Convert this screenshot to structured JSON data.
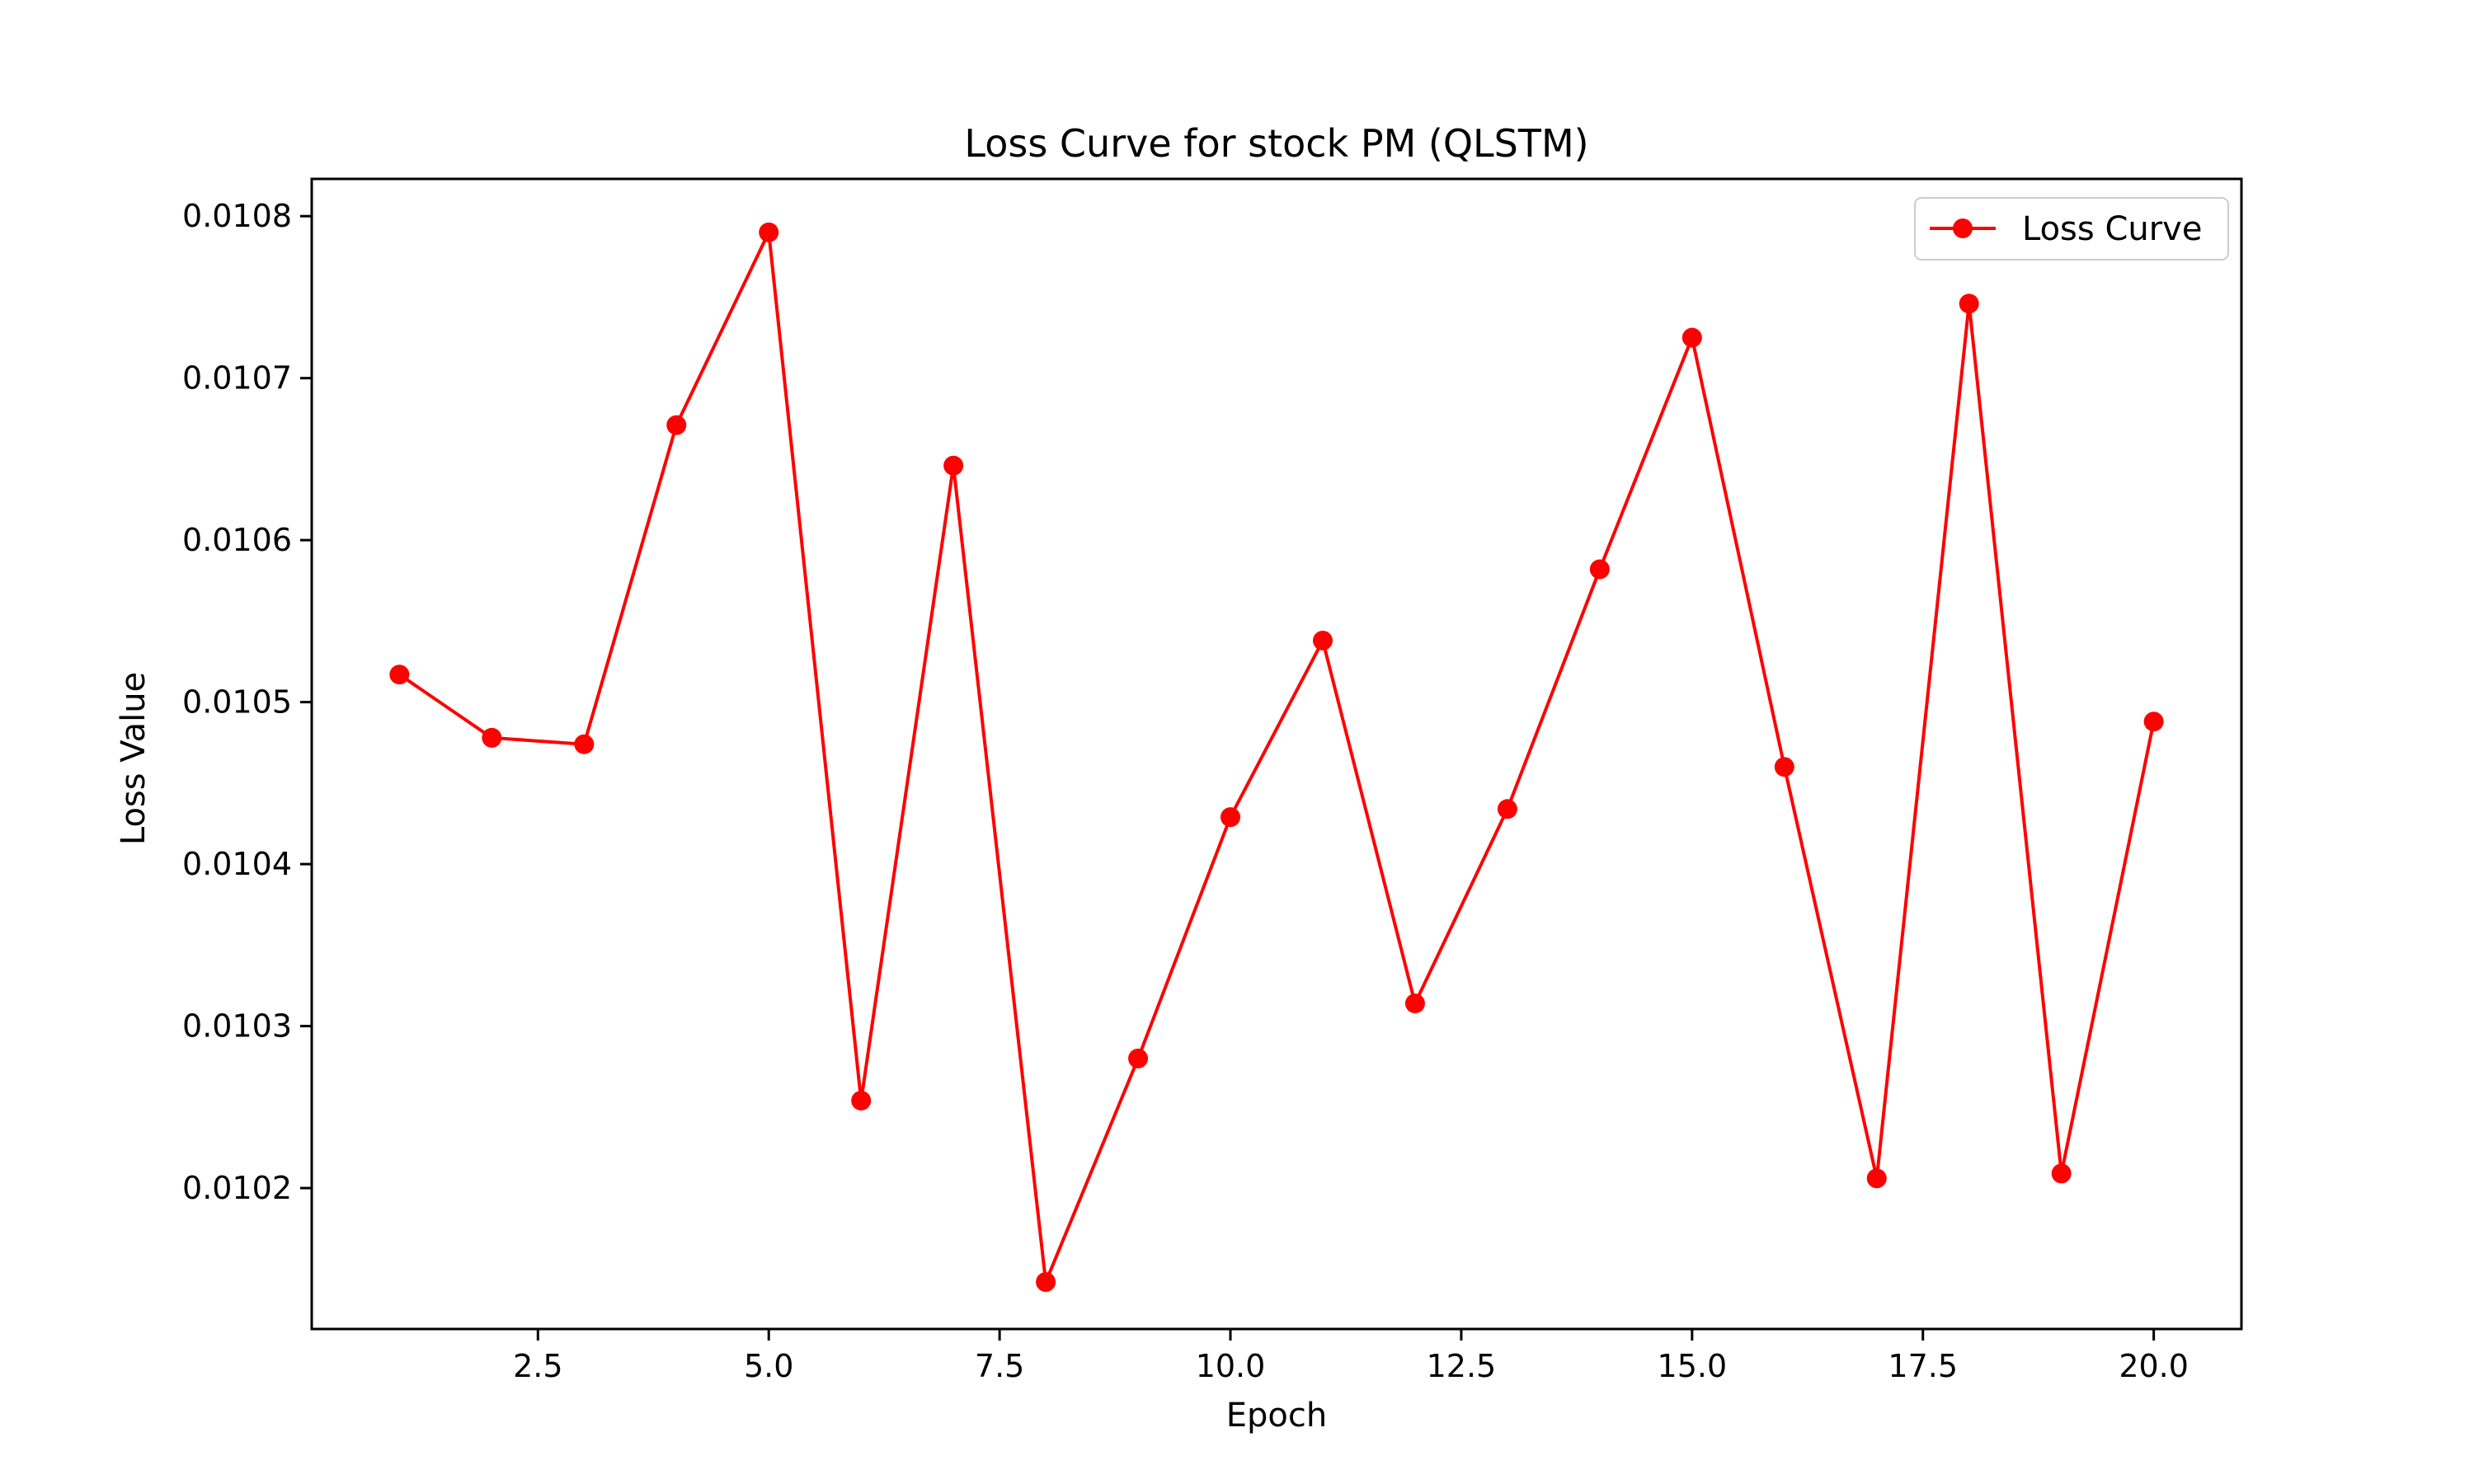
{
  "chart_data": {
    "type": "line",
    "title": "Loss Curve for stock PM (QLSTM)",
    "xlabel": "Epoch",
    "ylabel": "Loss Value",
    "xlim": [
      0.05,
      20.95
    ],
    "ylim": [
      0.010113,
      0.010823
    ],
    "xticks": [
      2.5,
      5.0,
      7.5,
      10.0,
      12.5,
      15.0,
      17.5,
      20.0
    ],
    "xtick_labels": [
      "2.5",
      "5.0",
      "7.5",
      "10.0",
      "12.5",
      "15.0",
      "17.5",
      "20.0"
    ],
    "yticks": [
      0.0102,
      0.0103,
      0.0104,
      0.0105,
      0.0106,
      0.0107,
      0.0108
    ],
    "ytick_labels": [
      "0.0102",
      "0.0103",
      "0.0104",
      "0.0105",
      "0.0106",
      "0.0107",
      "0.0108"
    ],
    "grid": false,
    "legend_position": "top-right",
    "series": [
      {
        "name": "Loss Curve",
        "color": "#ff0000",
        "marker": "circle",
        "x": [
          1,
          2,
          3,
          4,
          5,
          6,
          7,
          8,
          9,
          10,
          11,
          12,
          13,
          14,
          15,
          16,
          17,
          18,
          19,
          20
        ],
        "y": [
          0.010517,
          0.010478,
          0.010474,
          0.010671,
          0.01079,
          0.010254,
          0.010646,
          0.010142,
          0.01028,
          0.010429,
          0.010538,
          0.010314,
          0.010434,
          0.010582,
          0.010725,
          0.01046,
          0.010206,
          0.010746,
          0.010209,
          0.010488
        ]
      }
    ]
  }
}
